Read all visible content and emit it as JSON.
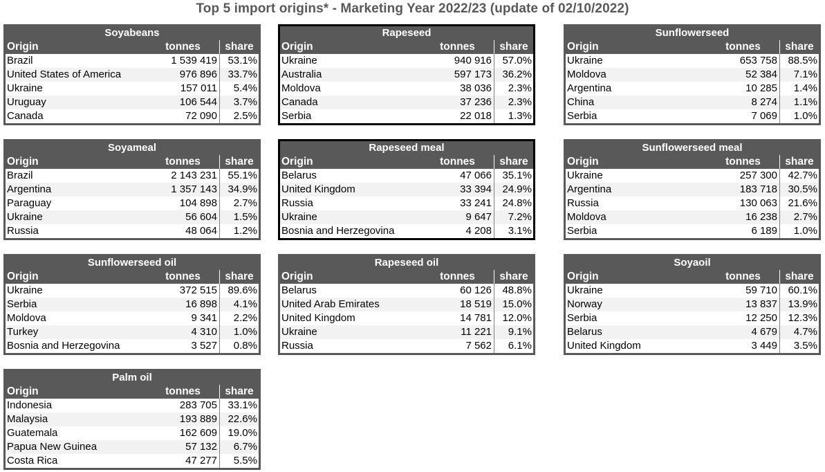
{
  "title": "Top 5 import origins* - Marketing Year 2022/23 (update of 02/10/2022)",
  "columns": {
    "origin": "Origin",
    "tonnes": "tonnes",
    "share": "share"
  },
  "tables": [
    {
      "id": "soyabeans",
      "name": "Soyabeans",
      "rows": [
        [
          "Brazil",
          "1 539 419",
          "53.1%"
        ],
        [
          "United States of America",
          "976 896",
          "33.7%"
        ],
        [
          "Ukraine",
          "157 011",
          "5.4%"
        ],
        [
          "Uruguay",
          "106 544",
          "3.7%"
        ],
        [
          "Canada",
          "72 090",
          "2.5%"
        ]
      ]
    },
    {
      "id": "rapeseed",
      "name": "Rapeseed",
      "rows": [
        [
          "Ukraine",
          "940 916",
          "57.0%"
        ],
        [
          "Australia",
          "597 173",
          "36.2%"
        ],
        [
          "Moldova",
          "38 036",
          "2.3%"
        ],
        [
          "Canada",
          "37 236",
          "2.3%"
        ],
        [
          "Serbia",
          "22 018",
          "1.3%"
        ]
      ]
    },
    {
      "id": "sunflowerseed",
      "name": "Sunflowerseed",
      "rows": [
        [
          "Ukraine",
          "653 758",
          "88.5%"
        ],
        [
          "Moldova",
          "52 384",
          "7.1%"
        ],
        [
          "Argentina",
          "10 285",
          "1.4%"
        ],
        [
          "China",
          "8 274",
          "1.1%"
        ],
        [
          "Serbia",
          "7 069",
          "1.0%"
        ]
      ]
    },
    {
      "id": "soyameal",
      "name": "Soyameal",
      "rows": [
        [
          "Brazil",
          "2 143 231",
          "55.1%"
        ],
        [
          "Argentina",
          "1 357 143",
          "34.9%"
        ],
        [
          "Paraguay",
          "104 898",
          "2.7%"
        ],
        [
          "Ukraine",
          "56 604",
          "1.5%"
        ],
        [
          "Russia",
          "48 064",
          "1.2%"
        ]
      ]
    },
    {
      "id": "rapeseed-meal",
      "name": "Rapeseed meal",
      "rows": [
        [
          "Belarus",
          "47 066",
          "35.1%"
        ],
        [
          "United Kingdom",
          "33 394",
          "24.9%"
        ],
        [
          "Russia",
          "33 241",
          "24.8%"
        ],
        [
          "Ukraine",
          "9 647",
          "7.2%"
        ],
        [
          "Bosnia and Herzegovina",
          "4 208",
          "3.1%"
        ]
      ]
    },
    {
      "id": "sunflowerseed-meal",
      "name": "Sunflowerseed meal",
      "rows": [
        [
          "Ukraine",
          "257 300",
          "42.7%"
        ],
        [
          "Argentina",
          "183 718",
          "30.5%"
        ],
        [
          "Russia",
          "130 063",
          "21.6%"
        ],
        [
          "Moldova",
          "16 238",
          "2.7%"
        ],
        [
          "Serbia",
          "6 189",
          "1.0%"
        ]
      ]
    },
    {
      "id": "sunflowerseed-oil",
      "name": "Sunflowerseed oil",
      "rows": [
        [
          "Ukraine",
          "372 515",
          "89.6%"
        ],
        [
          "Serbia",
          "16 898",
          "4.1%"
        ],
        [
          "Moldova",
          "9 341",
          "2.2%"
        ],
        [
          "Turkey",
          "4 310",
          "1.0%"
        ],
        [
          "Bosnia and Herzegovina",
          "3 527",
          "0.8%"
        ]
      ]
    },
    {
      "id": "rapeseed-oil",
      "name": "Rapeseed oil",
      "rows": [
        [
          "Belarus",
          "60 126",
          "48.8%"
        ],
        [
          "United Arab Emirates",
          "18 519",
          "15.0%"
        ],
        [
          "United Kingdom",
          "14 781",
          "12.0%"
        ],
        [
          "Ukraine",
          "11 221",
          "9.1%"
        ],
        [
          "Russia",
          "7 562",
          "6.1%"
        ]
      ]
    },
    {
      "id": "soyaoil",
      "name": "Soyaoil",
      "rows": [
        [
          "Ukraine",
          "59 710",
          "60.1%"
        ],
        [
          "Norway",
          "13 837",
          "13.9%"
        ],
        [
          "Serbia",
          "12 250",
          "12.3%"
        ],
        [
          "Belarus",
          "4 679",
          "4.7%"
        ],
        [
          "United Kingdom",
          "3 449",
          "3.5%"
        ]
      ]
    },
    {
      "id": "palm-oil",
      "name": "Palm oil",
      "rows": [
        [
          "Indonesia",
          "283 705",
          "33.1%"
        ],
        [
          "Malaysia",
          "193 889",
          "22.6%"
        ],
        [
          "Guatemala",
          "162 609",
          "19.0%"
        ],
        [
          "Papua New Guinea",
          "57 132",
          "6.7%"
        ],
        [
          "Costa Rica",
          "47 277",
          "5.5%"
        ]
      ]
    }
  ]
}
